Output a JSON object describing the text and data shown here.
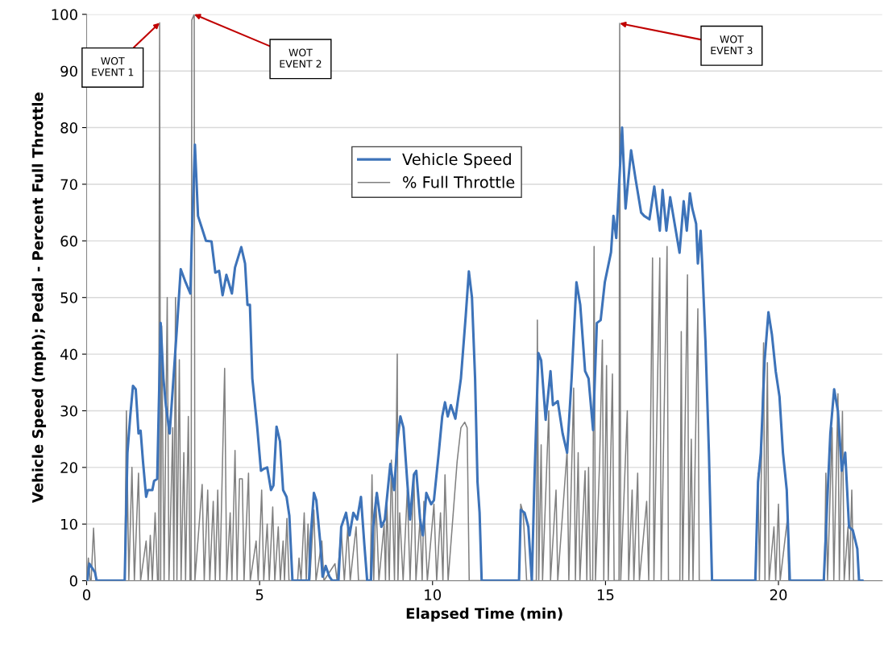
{
  "chart_data": {
    "type": "line",
    "xlabel": "Elapsed Time (min)",
    "ylabel": "Vehicle Speed (mph); Pedal - Percent Full Throttle",
    "xlim": [
      0,
      23
    ],
    "xticks": [
      0,
      5,
      10,
      15,
      20
    ],
    "ylim": [
      0,
      100
    ],
    "yticks": [
      0,
      10,
      20,
      30,
      40,
      50,
      60,
      70,
      80,
      90,
      100
    ],
    "grid": "y",
    "legend": "top",
    "marker": "none",
    "line_style": "solid",
    "series": [
      {
        "name": "Vehicle Speed",
        "color": "#3d73b9",
        "x": [
          0.02,
          0.08,
          0.24,
          0.29,
          1.1,
          1.18,
          1.26,
          1.34,
          1.42,
          1.5,
          1.56,
          1.63,
          1.72,
          1.77,
          1.9,
          1.95,
          2.04,
          2.08,
          2.14,
          2.22,
          2.29,
          2.4,
          2.51,
          2.62,
          2.72,
          2.86,
          3.0,
          3.04,
          3.13,
          3.22,
          3.32,
          3.45,
          3.61,
          3.72,
          3.83,
          3.93,
          4.04,
          4.2,
          4.29,
          4.47,
          4.58,
          4.65,
          4.72,
          4.79,
          4.93,
          5.04,
          5.11,
          5.22,
          5.33,
          5.4,
          5.49,
          5.59,
          5.68,
          5.78,
          5.86,
          5.95,
          6.43,
          6.48,
          6.57,
          6.64,
          6.75,
          6.82,
          6.91,
          7.02,
          7.1,
          7.28,
          7.36,
          7.5,
          7.6,
          7.71,
          7.82,
          7.93,
          8.03,
          8.11,
          8.22,
          8.28,
          8.39,
          8.52,
          8.62,
          8.78,
          8.89,
          8.99,
          9.07,
          9.16,
          9.27,
          9.35,
          9.46,
          9.53,
          9.64,
          9.72,
          9.82,
          9.96,
          10.04,
          10.18,
          10.28,
          10.36,
          10.44,
          10.53,
          10.66,
          10.82,
          10.96,
          11.05,
          11.14,
          11.23,
          11.3,
          11.36,
          11.42,
          12.5,
          12.55,
          12.66,
          12.77,
          12.87,
          12.95,
          13.06,
          13.14,
          13.27,
          13.41,
          13.48,
          13.62,
          13.76,
          13.89,
          14.02,
          14.16,
          14.27,
          14.41,
          14.51,
          14.64,
          14.75,
          14.86,
          14.98,
          15.16,
          15.23,
          15.31,
          15.48,
          15.58,
          15.74,
          15.87,
          16.03,
          16.12,
          16.27,
          16.41,
          16.57,
          16.65,
          16.76,
          16.87,
          17.14,
          17.26,
          17.35,
          17.44,
          17.51,
          17.62,
          17.67,
          17.75,
          17.8,
          17.89,
          17.99,
          18.08,
          19.33,
          19.41,
          19.49,
          19.6,
          19.71,
          19.81,
          19.92,
          20.03,
          20.13,
          20.24,
          20.33,
          21.31,
          21.4,
          21.5,
          21.61,
          21.72,
          21.83,
          21.93,
          22.04,
          22.15,
          22.28,
          22.33,
          22.44
        ],
        "values": [
          0,
          3,
          1.5,
          0,
          0,
          22.6,
          29,
          34.4,
          33.8,
          26,
          26.5,
          21,
          14.8,
          16,
          16,
          17.6,
          18,
          29,
          45.5,
          35.7,
          31,
          26,
          35.7,
          45.5,
          55,
          52.7,
          50.7,
          60.5,
          77,
          64.4,
          62.5,
          60,
          59.9,
          54.4,
          54.7,
          50.4,
          54,
          50.7,
          55.3,
          58.9,
          56,
          48.7,
          48.7,
          35.7,
          27.2,
          19.4,
          19.7,
          20,
          16,
          16.8,
          27.2,
          24.6,
          16,
          14.8,
          11.5,
          0,
          0,
          8,
          15.5,
          14.2,
          7,
          0.7,
          2.6,
          0.7,
          0,
          0,
          9.5,
          12,
          8,
          12,
          10.8,
          14.8,
          6.3,
          0,
          0,
          9.5,
          15.5,
          9.5,
          10.8,
          20.6,
          16,
          25,
          29,
          27,
          17.4,
          10.8,
          18.7,
          19.4,
          10.8,
          8,
          15.5,
          13.5,
          14.2,
          22.6,
          29,
          31.5,
          29,
          31,
          28.6,
          35.7,
          46.8,
          54.6,
          50,
          35.7,
          17.4,
          12,
          0,
          0,
          12.5,
          12,
          9.5,
          0,
          18.7,
          40.2,
          38.9,
          28.4,
          37,
          31,
          31.7,
          26,
          22.6,
          35.7,
          52.7,
          48.7,
          37,
          35.7,
          26.6,
          45.5,
          46,
          52.7,
          58,
          64.4,
          60.5,
          80,
          65.7,
          76,
          70.9,
          65,
          64.4,
          63.8,
          69.6,
          61.8,
          69,
          61.8,
          67.7,
          57.9,
          67,
          61.8,
          68.4,
          65.7,
          63,
          56,
          61.8,
          55.3,
          42.2,
          22.6,
          0,
          0,
          17.4,
          22.6,
          38.9,
          47.4,
          43.5,
          37,
          32.5,
          22.6,
          16,
          0,
          0,
          12.5,
          26,
          33.8,
          29.9,
          19.4,
          22.6,
          9.5,
          8.9,
          5.6,
          0,
          0
        ]
      },
      {
        "name": "% Full Throttle",
        "color": "#808080",
        "x": [
          0,
          0.05,
          0.1,
          0.13,
          0.2,
          0.27,
          1.1,
          1.15,
          1.22,
          1.31,
          1.38,
          1.5,
          1.56,
          1.72,
          1.78,
          1.84,
          1.9,
          1.98,
          2.05,
          2.08,
          2.11,
          2.14,
          2.17,
          2.24,
          2.33,
          2.38,
          2.49,
          2.52,
          2.57,
          2.61,
          2.68,
          2.73,
          2.81,
          2.86,
          2.94,
          2.99,
          3.02,
          3.04,
          3.11,
          3.13,
          3.34,
          3.4,
          3.5,
          3.56,
          3.66,
          3.72,
          3.79,
          3.85,
          3.99,
          4.05,
          4.15,
          4.2,
          4.29,
          4.35,
          4.42,
          4.5,
          4.55,
          4.68,
          4.73,
          4.9,
          4.96,
          5.06,
          5.12,
          5.22,
          5.28,
          5.38,
          5.44,
          5.54,
          5.6,
          5.68,
          5.72,
          5.79,
          5.85,
          6.1,
          6.14,
          6.2,
          6.29,
          6.35,
          6.4,
          6.45,
          6.57,
          6.63,
          6.8,
          6.86,
          7.18,
          7.24,
          7.36,
          7.45,
          7.55,
          7.62,
          7.79,
          7.86,
          8.2,
          8.25,
          8.3,
          8.36,
          8.45,
          8.6,
          8.64,
          8.68,
          8.75,
          8.81,
          8.9,
          8.98,
          9.0,
          9.05,
          9.15,
          9.27,
          9.35,
          9.46,
          9.52,
          9.64,
          9.7,
          9.75,
          9.85,
          10.04,
          10.12,
          10.23,
          10.3,
          10.36,
          10.45,
          10.71,
          10.82,
          10.93,
          11.0,
          11.06,
          12.5,
          12.55,
          12.62,
          12.72,
          13.0,
          13.03,
          13.07,
          13.14,
          13.18,
          13.36,
          13.41,
          13.57,
          13.62,
          13.89,
          13.94,
          14.08,
          14.13,
          14.21,
          14.26,
          14.41,
          14.46,
          14.51,
          14.56,
          14.63,
          14.67,
          14.71,
          14.83,
          14.91,
          14.95,
          15.03,
          15.08,
          15.2,
          15.25,
          15.39,
          15.41,
          15.44,
          15.63,
          15.67,
          15.77,
          15.82,
          15.93,
          15.98,
          16.19,
          16.25,
          16.36,
          16.4,
          16.57,
          16.61,
          16.78,
          16.82,
          17.15,
          17.19,
          17.23,
          17.37,
          17.41,
          17.48,
          17.53,
          17.67,
          17.71,
          19.35,
          19.41,
          19.45,
          19.57,
          19.61,
          19.68,
          19.73,
          19.87,
          19.92,
          20.0,
          20.05,
          20.26,
          20.3,
          21.33,
          21.37,
          21.42,
          21.55,
          21.6,
          21.72,
          21.76,
          21.85,
          21.9,
          22.01,
          22.05,
          22.12,
          22.17,
          22.38
        ],
        "values": [
          0,
          4,
          0,
          0,
          9.3,
          0,
          0,
          30,
          0,
          20,
          0,
          19,
          0,
          7,
          0,
          8,
          0,
          12,
          0,
          0,
          98.5,
          0,
          45,
          0,
          50,
          0,
          27,
          0,
          50,
          0,
          39,
          0,
          22.6,
          0,
          29,
          0,
          0,
          99,
          100,
          0,
          17,
          0,
          16,
          0,
          14,
          0,
          16,
          0,
          37.5,
          0,
          12,
          0,
          23,
          0,
          18,
          18,
          0,
          19,
          0,
          7,
          0,
          16,
          0,
          10,
          0,
          13,
          0,
          9.5,
          0,
          7,
          0,
          11,
          0,
          0,
          4,
          0,
          12,
          0,
          10,
          0,
          12.5,
          0,
          7,
          0,
          3,
          0,
          9,
          0,
          9.5,
          0,
          9.5,
          0,
          0,
          18.7,
          0,
          14.8,
          0,
          10,
          0,
          14,
          0,
          21.3,
          0,
          40,
          0,
          12,
          0,
          16,
          0,
          19,
          0,
          11,
          0,
          14,
          0,
          13.5,
          0,
          12,
          0,
          18.7,
          0,
          21,
          27,
          28,
          27,
          0,
          0,
          13.5,
          12,
          0,
          0,
          46,
          0,
          24,
          0,
          30,
          0,
          16,
          0,
          23,
          0,
          34,
          0,
          22.6,
          0,
          19.4,
          0,
          20,
          0,
          0,
          59,
          0,
          21,
          42.5,
          0,
          38,
          0,
          36.5,
          0,
          0,
          98.4,
          0,
          30,
          0,
          16,
          0,
          19,
          0,
          14,
          0,
          57,
          0,
          57,
          0,
          59,
          0,
          0,
          44,
          0,
          54,
          0,
          25,
          0,
          48,
          0,
          0,
          19,
          0,
          42,
          0,
          38.5,
          0,
          9.5,
          0,
          13.5,
          0,
          11,
          0,
          0,
          19,
          0,
          27,
          0,
          33,
          0,
          29.9,
          0,
          9.5,
          0,
          16,
          0,
          0
        ]
      }
    ],
    "annotations": [
      {
        "text": "WOT\nEVENT 1",
        "x": 2.11,
        "y": 98.5
      },
      {
        "text": "WOT\nEVENT 2",
        "x": 3.11,
        "y": 100
      },
      {
        "text": "WOT\nEVENT 3",
        "x": 15.41,
        "y": 98.4
      }
    ]
  }
}
